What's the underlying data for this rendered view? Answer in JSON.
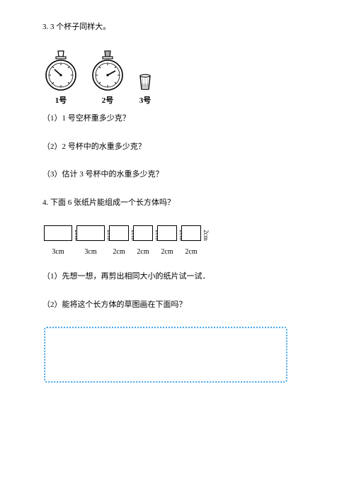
{
  "q3": {
    "title": "3. 3 个杯子同样大。",
    "labels": [
      "1号",
      "2号",
      "3号"
    ],
    "sub1": "（1）1 号空杯重多少克？",
    "sub2": "（2）2 号杯中的水重多少克？",
    "sub3": "（3）估计 3 号杯中的水重多少克？"
  },
  "q4": {
    "title": "4. 下面 6 张纸片能组成一个长方体吗？",
    "cards": [
      {
        "w": 38,
        "h": 20,
        "right": "2cm",
        "bottom": "3cm"
      },
      {
        "w": 38,
        "h": 20,
        "right": "2cm",
        "bottom": "3cm"
      },
      {
        "w": 26,
        "h": 20,
        "right": "2cm",
        "bottom": "2cm"
      },
      {
        "w": 26,
        "h": 20,
        "right": "2cm",
        "bottom": "2cm"
      },
      {
        "w": 26,
        "h": 20,
        "right": "2cm",
        "bottom": "2cm"
      },
      {
        "w": 26,
        "h": 20,
        "right": "2cm",
        "bottom": "2cm"
      }
    ],
    "sub1": "（1）先想一想，再剪出相同大小的纸片试一试．",
    "sub2": "（2）能将这个长方体的草图画在下面吗？"
  },
  "colors": {
    "text": "#000000",
    "box_border": "#4aa8e8",
    "background": "#ffffff"
  }
}
